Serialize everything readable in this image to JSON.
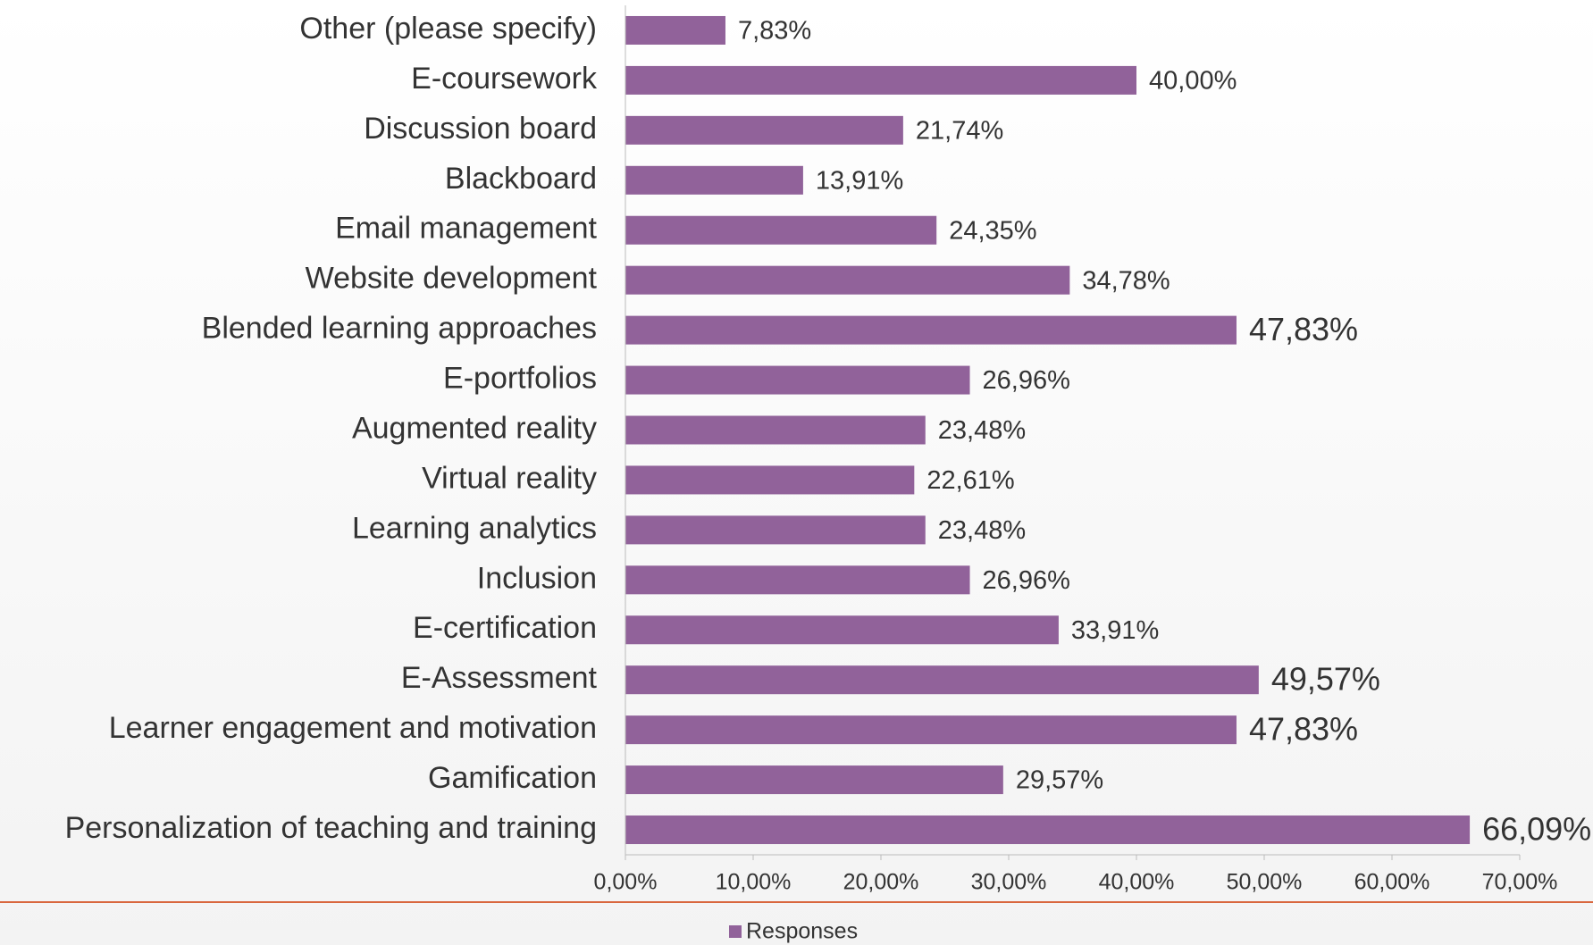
{
  "chart_data": {
    "type": "bar",
    "orientation": "horizontal",
    "categories": [
      "Other (please specify)",
      "E-coursework",
      "Discussion board",
      "Blackboard",
      "Email management",
      "Website development",
      "Blended learning approaches",
      "E-portfolios",
      "Augmented reality",
      "Virtual reality",
      "Learning analytics",
      "Inclusion",
      "E-certification",
      "E-Assessment",
      "Learner engagement and motivation",
      "Gamification",
      "Personalization of teaching and training"
    ],
    "series": [
      {
        "name": "Responses",
        "color": "#91629a",
        "values": [
          7.83,
          40.0,
          21.74,
          13.91,
          24.35,
          34.78,
          47.83,
          26.96,
          23.48,
          22.61,
          23.48,
          26.96,
          33.91,
          49.57,
          47.83,
          29.57,
          66.09
        ],
        "value_labels": [
          "7,83%",
          "40,00%",
          "21,74%",
          "13,91%",
          "24,35%",
          "34,78%",
          "47,83%",
          "26,96%",
          "23,48%",
          "22,61%",
          "23,48%",
          "26,96%",
          "33,91%",
          "49,57%",
          "47,83%",
          "29,57%",
          "66,09%"
        ]
      }
    ],
    "xlim": [
      0,
      70
    ],
    "xticks": [
      {
        "value": 0,
        "label": "0,00%"
      },
      {
        "value": 10,
        "label": "10,00%"
      },
      {
        "value": 20,
        "label": "20,00%"
      },
      {
        "value": 30,
        "label": "30,00%"
      },
      {
        "value": 40,
        "label": "40,00%"
      },
      {
        "value": 50,
        "label": "50,00%"
      },
      {
        "value": 60,
        "label": "60,00%"
      },
      {
        "value": 70,
        "label": "70,00%"
      }
    ],
    "legend": "bottom"
  }
}
